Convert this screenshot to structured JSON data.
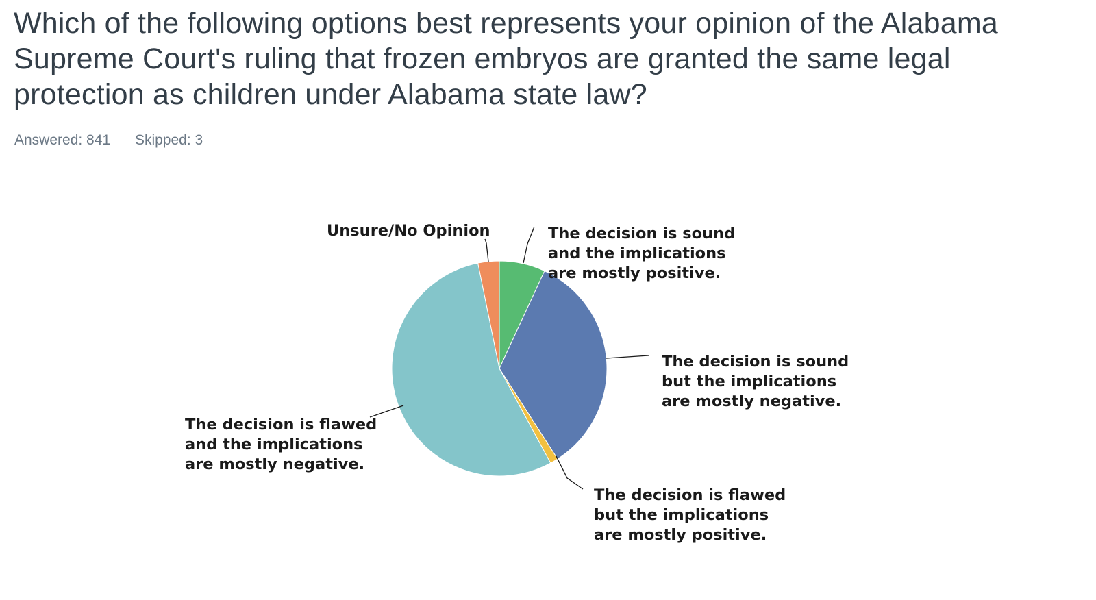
{
  "question": {
    "title": "Which of the following options best represents your opinion of the Alabama Supreme Court's ruling that frozen embryos are granted the same legal protection as children under Alabama state law?"
  },
  "stats": {
    "answered": "Answered: 841",
    "skipped": "Skipped: 3"
  },
  "chart_data": {
    "type": "pie",
    "start_angle_deg": 0,
    "direction": "clockwise",
    "slices": [
      {
        "label": [
          "The decision is sound",
          "and the implications",
          "are mostly positive."
        ],
        "value": 6.9,
        "color": "#57bb72"
      },
      {
        "label": [
          "The decision is sound",
          "but the implications",
          "are mostly negative."
        ],
        "value": 34.0,
        "color": "#5b7ab0"
      },
      {
        "label": [
          "The decision is flawed",
          "but the implications",
          "are mostly positive."
        ],
        "value": 1.2,
        "color": "#f2c040"
      },
      {
        "label": [
          "The decision is flawed",
          "and the implications",
          "are mostly negative."
        ],
        "value": 54.7,
        "color": "#84c5ca"
      },
      {
        "label": [
          "Unsure/No Opinion"
        ],
        "value": 3.2,
        "color": "#ef8d5c"
      }
    ]
  }
}
